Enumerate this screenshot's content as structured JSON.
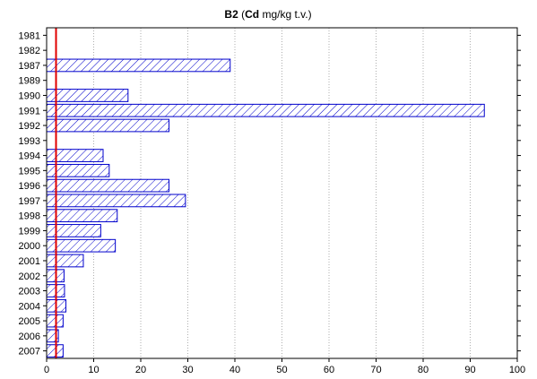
{
  "chart_data": {
    "type": "bar",
    "orientation": "horizontal",
    "title": {
      "bold": "B2",
      "open": " (",
      "bold2": "Cd",
      "rest": " mg/kg t.v.)"
    },
    "categories": [
      "1981",
      "1982",
      "1987",
      "1989",
      "1990",
      "1991",
      "1992",
      "1993",
      "1994",
      "1995",
      "1996",
      "1997",
      "1998",
      "1999",
      "2000",
      "2001",
      "2002",
      "2003",
      "2004",
      "2005",
      "2006",
      "2007"
    ],
    "values": [
      0,
      0,
      39,
      0,
      17.3,
      93,
      26,
      0,
      12,
      13.3,
      26,
      29.5,
      15,
      11.5,
      14.6,
      7.8,
      3.7,
      3.8,
      4.1,
      3.5,
      2.5,
      3.5
    ],
    "xlim": [
      0,
      100
    ],
    "xticks": [
      0,
      10,
      20,
      30,
      40,
      50,
      60,
      70,
      80,
      90,
      100
    ],
    "reference_line": {
      "x": 2,
      "color": "#e00000"
    },
    "bar_color": "#0000cc",
    "bar_fill": "diagonal-hatch",
    "grid": "vertical, dotted",
    "xlabel": "",
    "ylabel": ""
  }
}
